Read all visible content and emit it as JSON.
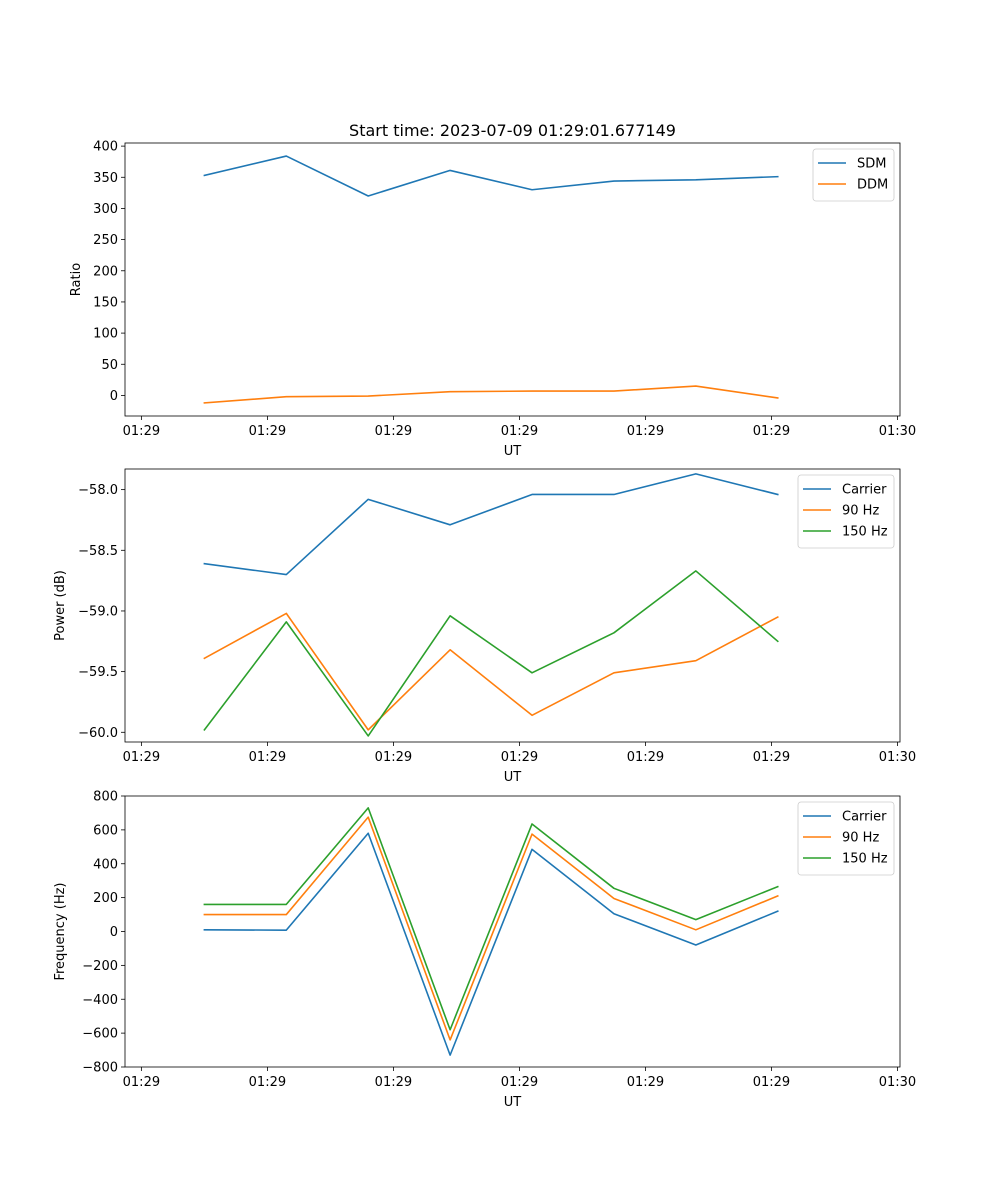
{
  "colors": {
    "c0": "#1f77b4",
    "c1": "#ff7f0e",
    "c2": "#2ca02c",
    "legend_border": "#cccccc",
    "axes": "#000000"
  },
  "chart_data": [
    {
      "type": "line",
      "title": "Start time: 2023-07-09 01:29:01.677149",
      "xlabel": "UT",
      "ylabel": "Ratio",
      "xlim": [
        0,
        6.15
      ],
      "x_ticks": [
        0.13,
        1.13,
        2.13,
        3.13,
        4.13,
        5.13,
        6.13
      ],
      "x_tick_labels": [
        "01:29",
        "01:29",
        "01:29",
        "01:29",
        "01:29",
        "01:29",
        "01:30"
      ],
      "ylim": [
        -33,
        405
      ],
      "y_ticks": [
        0,
        50,
        100,
        150,
        200,
        250,
        300,
        350,
        400
      ],
      "y_tick_labels": [
        "0",
        "50",
        "100",
        "150",
        "200",
        "250",
        "300",
        "350",
        "400"
      ],
      "x": [
        0.63,
        1.28,
        1.93,
        2.58,
        3.23,
        3.88,
        4.53,
        5.18
      ],
      "legend_position": "top-right",
      "series": [
        {
          "name": "SDM",
          "color_key": "c0",
          "values": [
            353,
            384,
            320,
            361,
            330,
            344,
            346,
            351
          ]
        },
        {
          "name": "DDM",
          "color_key": "c1",
          "values": [
            -12,
            -2,
            -1,
            6,
            7,
            7,
            15,
            -4
          ]
        }
      ]
    },
    {
      "type": "line",
      "title": "",
      "xlabel": "UT",
      "ylabel": "Power (dB)",
      "xlim": [
        0,
        6.15
      ],
      "x_ticks": [
        0.13,
        1.13,
        2.13,
        3.13,
        4.13,
        5.13,
        6.13
      ],
      "x_tick_labels": [
        "01:29",
        "01:29",
        "01:29",
        "01:29",
        "01:29",
        "01:29",
        "01:30"
      ],
      "ylim": [
        -60.08,
        -57.83
      ],
      "y_ticks": [
        -60.0,
        -59.5,
        -59.0,
        -58.5,
        -58.0
      ],
      "y_tick_labels": [
        "−60.0",
        "−59.5",
        "−59.0",
        "−58.5",
        "−58.0"
      ],
      "x": [
        0.63,
        1.28,
        1.93,
        2.58,
        3.23,
        3.88,
        4.53,
        5.18
      ],
      "legend_position": "top-right",
      "series": [
        {
          "name": "Carrier",
          "color_key": "c0",
          "values": [
            -58.61,
            -58.7,
            -58.08,
            -58.29,
            -58.04,
            -58.04,
            -57.87,
            -58.04
          ]
        },
        {
          "name": "90 Hz",
          "color_key": "c1",
          "values": [
            -59.39,
            -59.02,
            -59.98,
            -59.32,
            -59.86,
            -59.51,
            -59.41,
            -59.05
          ]
        },
        {
          "name": "150 Hz",
          "color_key": "c2",
          "values": [
            -59.98,
            -59.09,
            -60.03,
            -59.04,
            -59.51,
            -59.18,
            -58.67,
            -59.25
          ]
        }
      ]
    },
    {
      "type": "line",
      "title": "",
      "xlabel": "UT",
      "ylabel": "Frequency (Hz)",
      "xlim": [
        0,
        6.15
      ],
      "x_ticks": [
        0.13,
        1.13,
        2.13,
        3.13,
        4.13,
        5.13,
        6.13
      ],
      "x_tick_labels": [
        "01:29",
        "01:29",
        "01:29",
        "01:29",
        "01:29",
        "01:29",
        "01:30"
      ],
      "ylim": [
        -800,
        800
      ],
      "y_ticks": [
        -800,
        -600,
        -400,
        -200,
        0,
        200,
        400,
        600,
        800
      ],
      "y_tick_labels": [
        "−800",
        "−600",
        "−400",
        "−200",
        "0",
        "200",
        "400",
        "600",
        "800"
      ],
      "x": [
        0.63,
        1.28,
        1.93,
        2.58,
        3.23,
        3.88,
        4.53,
        5.18
      ],
      "legend_position": "top-right",
      "series": [
        {
          "name": "Carrier",
          "color_key": "c0",
          "values": [
            10,
            8,
            580,
            -730,
            485,
            105,
            -80,
            120
          ]
        },
        {
          "name": "90 Hz",
          "color_key": "c1",
          "values": [
            100,
            100,
            675,
            -640,
            575,
            195,
            10,
            210
          ]
        },
        {
          "name": "150 Hz",
          "color_key": "c2",
          "values": [
            160,
            160,
            730,
            -580,
            635,
            255,
            70,
            265
          ]
        }
      ]
    }
  ]
}
